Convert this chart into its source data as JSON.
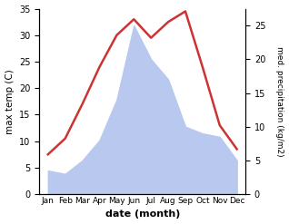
{
  "months": [
    "Jan",
    "Feb",
    "Mar",
    "Apr",
    "May",
    "Jun",
    "Jul",
    "Aug",
    "Sep",
    "Oct",
    "Nov",
    "Dec"
  ],
  "month_x": [
    1,
    2,
    3,
    4,
    5,
    6,
    7,
    8,
    9,
    10,
    11,
    12
  ],
  "temperature": [
    7.5,
    10.5,
    17.0,
    24.0,
    30.0,
    33.0,
    29.5,
    32.5,
    34.5,
    24.0,
    13.0,
    8.5
  ],
  "precipitation": [
    3.5,
    3.0,
    5.0,
    8.0,
    14.0,
    25.0,
    20.0,
    17.0,
    10.0,
    9.0,
    8.5,
    5.0
  ],
  "temp_color": "#cc3333",
  "precip_color": "#b8c8ee",
  "temp_ylim": [
    0,
    35
  ],
  "precip_ylim": [
    0,
    27.5
  ],
  "temp_yticks": [
    0,
    5,
    10,
    15,
    20,
    25,
    30,
    35
  ],
  "precip_yticks": [
    0,
    5,
    10,
    15,
    20,
    25
  ],
  "xlabel": "date (month)",
  "ylabel_left": "max temp (C)",
  "ylabel_right": "med. precipitation (kg/m2)",
  "bg_color": "#ffffff"
}
